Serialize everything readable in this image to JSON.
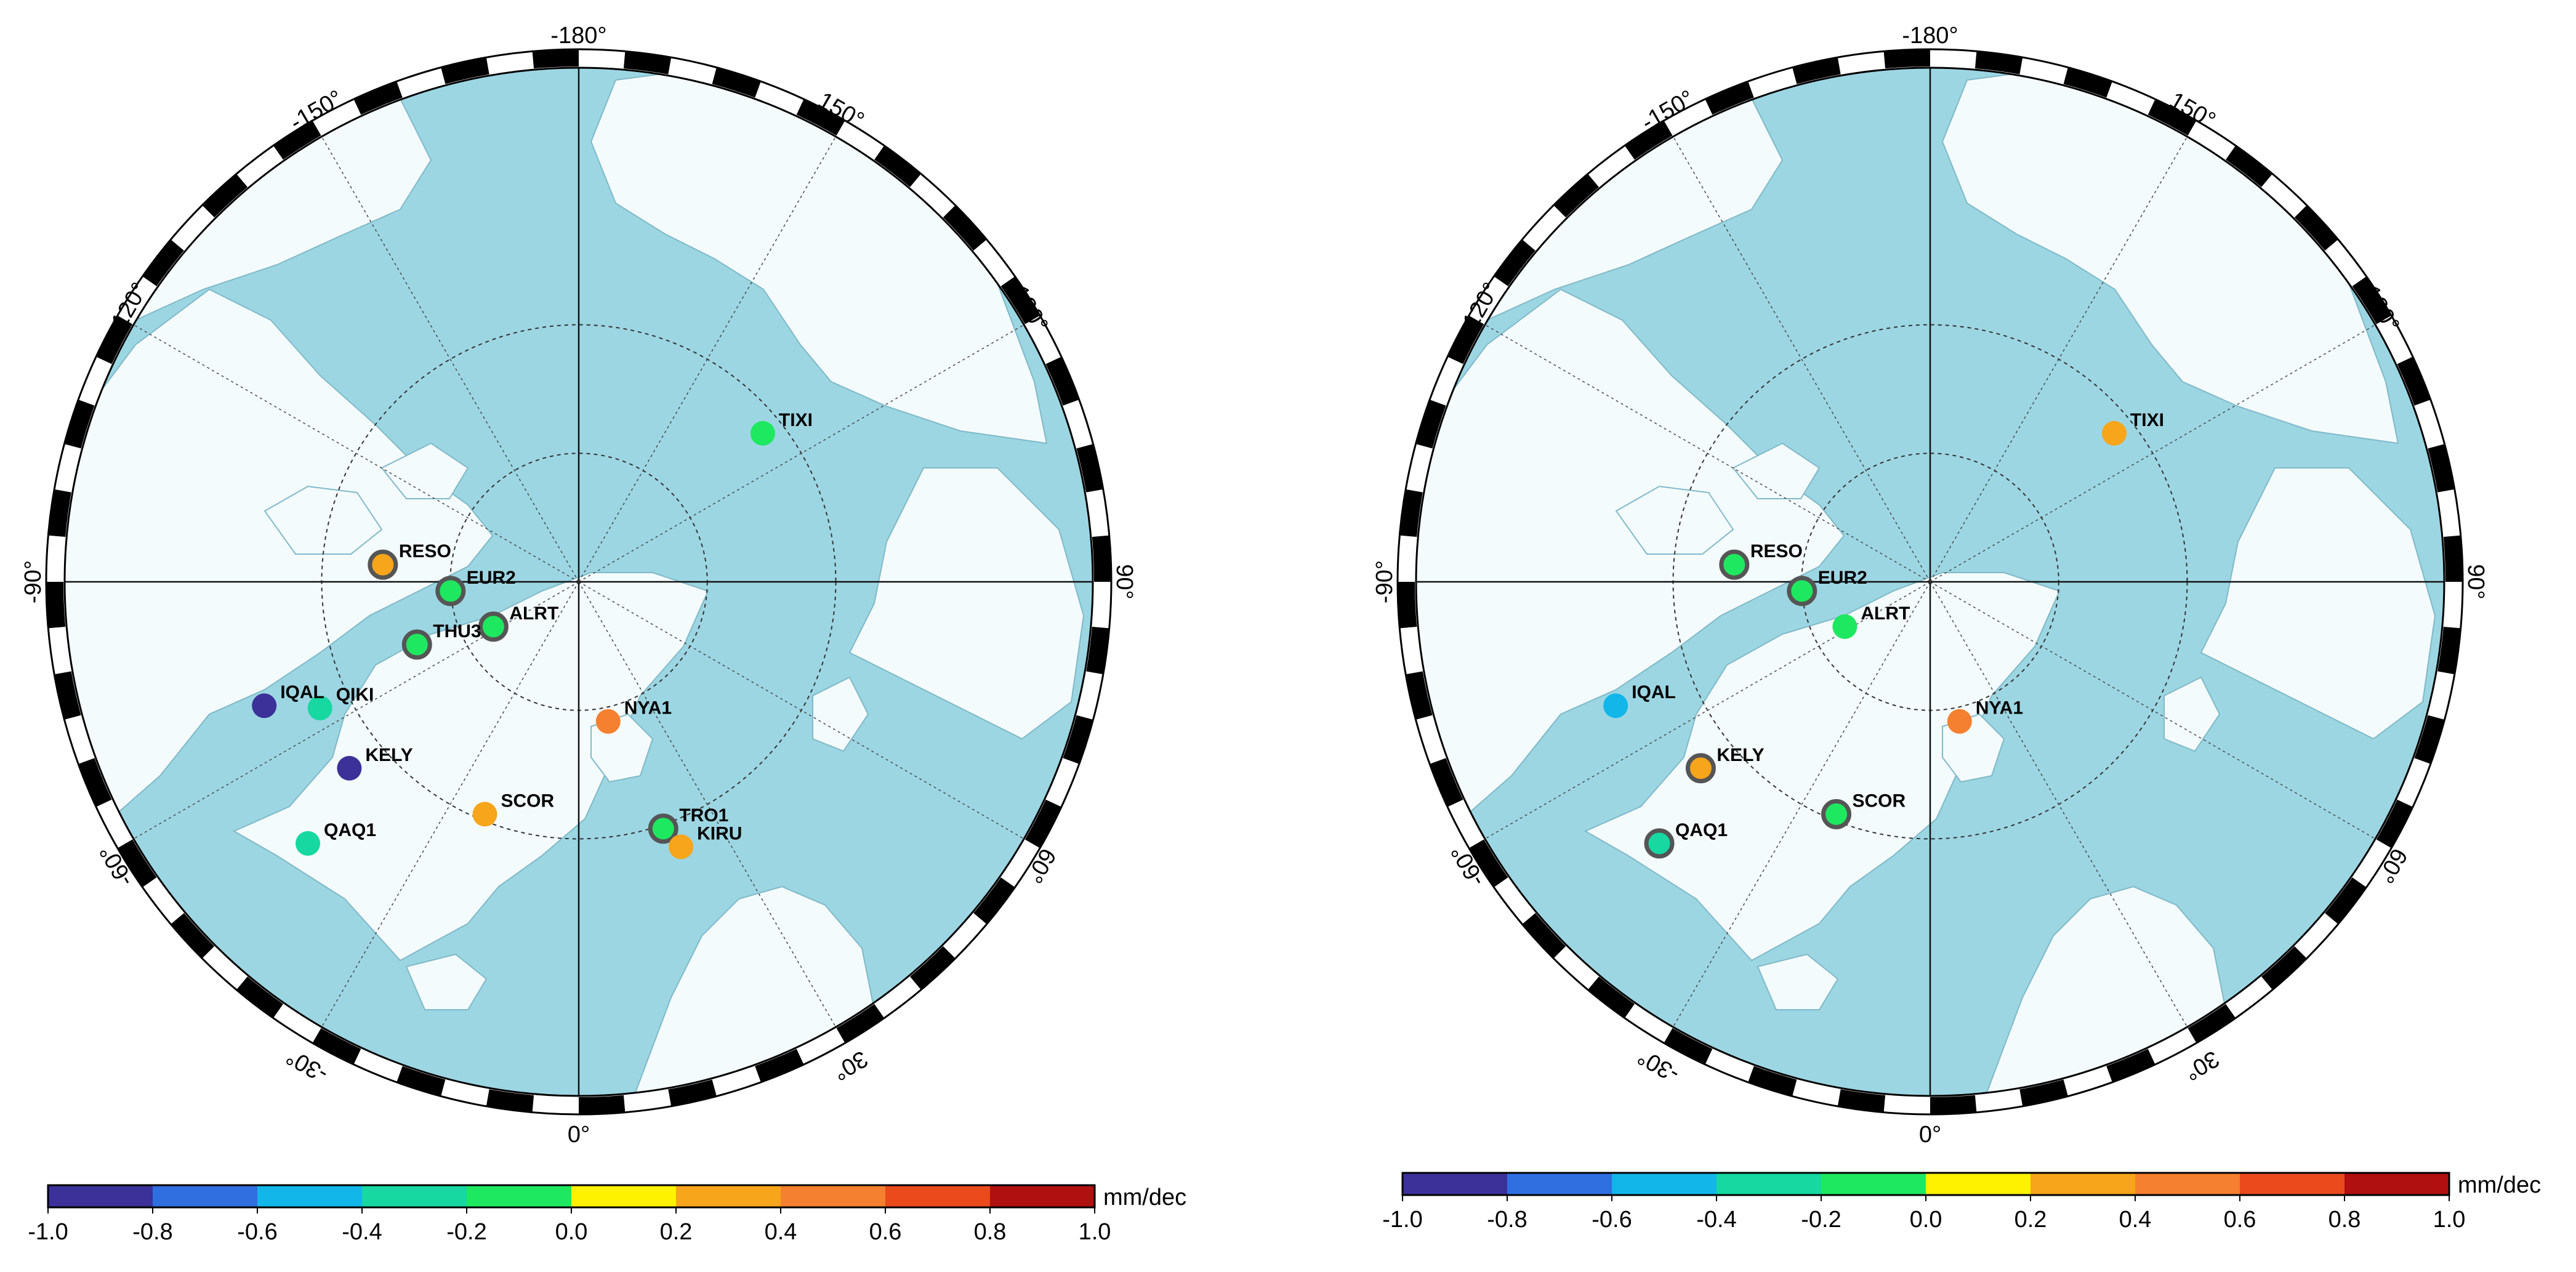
{
  "unit": "mm/dec",
  "colorbar": {
    "ticks": [
      "-1.0",
      "-0.8",
      "-0.6",
      "-0.4",
      "-0.2",
      "0.0",
      "0.2",
      "0.4",
      "0.6",
      "0.8",
      "1.0"
    ],
    "colors": [
      "#3b3199",
      "#2f6fe0",
      "#12b6e8",
      "#16d8a0",
      "#1ee860",
      "#fff200",
      "#f7a51a",
      "#f48030",
      "#ea4a1c",
      "#b01010"
    ]
  },
  "colors": {
    "ocean": "#9dd6e3",
    "land": "#f4fbfd",
    "grid": "#333333",
    "ring": "#000000"
  },
  "maps": [
    {
      "lon_labels": {
        "m180": "-180°",
        "m150": "-150°",
        "m120": "-120°",
        "m90": "-90°",
        "m60": "-60°",
        "m30": "-30°",
        "z0": "0°",
        "p30": "30°",
        "p60": "60°",
        "p90": "90°",
        "p120": "120°",
        "p150": "150°"
      },
      "stations": [
        {
          "name": "TIXI",
          "lat": 71.6,
          "lon": 128.9,
          "value": -0.1,
          "outlined": false
        },
        {
          "name": "RESO",
          "lat": 74.7,
          "lon": -95.0,
          "value": 0.25,
          "outlined": true
        },
        {
          "name": "EUR2",
          "lat": 80.0,
          "lon": -85.9,
          "value": -0.1,
          "outlined": true
        },
        {
          "name": "ALRT",
          "lat": 82.5,
          "lon": -62.3,
          "value": -0.15,
          "outlined": true
        },
        {
          "name": "THU3",
          "lat": 76.5,
          "lon": -68.8,
          "value": -0.15,
          "outlined": true
        },
        {
          "name": "QIKI",
          "lat": 67.6,
          "lon": -64.0,
          "value": -0.35,
          "outlined": false
        },
        {
          "name": "IQAL",
          "lat": 63.7,
          "lon": -68.5,
          "value": -0.95,
          "outlined": false
        },
        {
          "name": "KELY",
          "lat": 67.0,
          "lon": -50.9,
          "value": -0.95,
          "outlined": false
        },
        {
          "name": "QAQ1",
          "lat": 60.7,
          "lon": -46.0,
          "value": -0.35,
          "outlined": false
        },
        {
          "name": "SCOR",
          "lat": 70.5,
          "lon": -22.0,
          "value": 0.3,
          "outlined": false
        },
        {
          "name": "NYA1",
          "lat": 78.9,
          "lon": 11.9,
          "value": 0.5,
          "outlined": false
        },
        {
          "name": "TRO1",
          "lat": 69.7,
          "lon": 18.9,
          "value": -0.15,
          "outlined": true
        },
        {
          "name": "KIRU",
          "lat": 67.9,
          "lon": 21.1,
          "value": 0.3,
          "outlined": false
        }
      ]
    },
    {
      "lon_labels": {
        "m180": "-180°",
        "m150": "-150°",
        "m120": "-120°",
        "m90": "-90°",
        "m60": "-60°",
        "m30": "-30°",
        "z0": "0°",
        "p30": "30°",
        "p60": "60°",
        "p90": "90°",
        "p120": "120°",
        "p150": "150°"
      },
      "stations": [
        {
          "name": "TIXI",
          "lat": 71.6,
          "lon": 128.9,
          "value": 0.3,
          "outlined": false
        },
        {
          "name": "RESO",
          "lat": 74.7,
          "lon": -95.0,
          "value": -0.15,
          "outlined": true
        },
        {
          "name": "EUR2",
          "lat": 80.0,
          "lon": -85.9,
          "value": -0.15,
          "outlined": true
        },
        {
          "name": "ALRT",
          "lat": 82.5,
          "lon": -62.3,
          "value": -0.1,
          "outlined": false
        },
        {
          "name": "IQAL",
          "lat": 63.7,
          "lon": -68.5,
          "value": -0.55,
          "outlined": false
        },
        {
          "name": "KELY",
          "lat": 67.0,
          "lon": -50.9,
          "value": 0.3,
          "outlined": true
        },
        {
          "name": "QAQ1",
          "lat": 60.7,
          "lon": -46.0,
          "value": -0.35,
          "outlined": true
        },
        {
          "name": "SCOR",
          "lat": 70.5,
          "lon": -22.0,
          "value": -0.15,
          "outlined": true
        },
        {
          "name": "NYA1",
          "lat": 78.9,
          "lon": 11.9,
          "value": 0.5,
          "outlined": false
        }
      ]
    }
  ]
}
